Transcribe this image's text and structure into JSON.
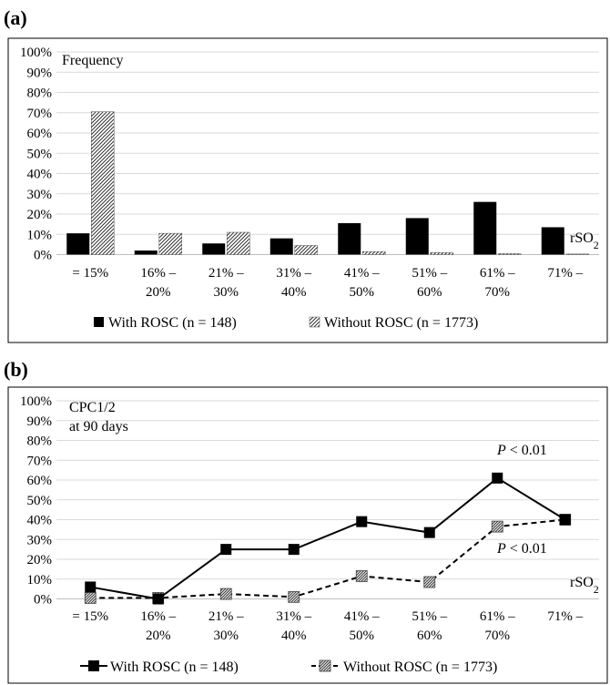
{
  "chart_data": [
    {
      "panel_label": "(a)",
      "type": "bar",
      "categories": [
        [
          "= 15%",
          ""
        ],
        [
          "16% –",
          "20%"
        ],
        [
          "21% –",
          "30%"
        ],
        [
          "31% –",
          "40%"
        ],
        [
          "41% –",
          "50%"
        ],
        [
          "51% –",
          "60%"
        ],
        [
          "61% –",
          "70%"
        ],
        [
          "71% –",
          ""
        ]
      ],
      "series": [
        {
          "name": "With ROSC (n = 148)",
          "values": [
            10.5,
            2,
            5.5,
            8,
            15.5,
            18,
            26,
            13.5
          ],
          "fill": "solid",
          "color": "#000000"
        },
        {
          "name": "Without ROSC (n = 1773)",
          "values": [
            70.5,
            10.5,
            11,
            4.5,
            1.5,
            1,
            0.5,
            0.3
          ],
          "fill": "hatched",
          "color": "#555555"
        }
      ],
      "ylabel": "Frequency",
      "xlabel": "rSO",
      "xlabel_sub": "2",
      "ylim": [
        0,
        100
      ],
      "ytick_step": 10,
      "y_tick_suffix": "%",
      "grid": true,
      "legend_position": "bottom"
    },
    {
      "panel_label": "(b)",
      "type": "line",
      "categories": [
        [
          "= 15%",
          ""
        ],
        [
          "16% –",
          "20%"
        ],
        [
          "21% –",
          "30%"
        ],
        [
          "31% –",
          "40%"
        ],
        [
          "41% –",
          "50%"
        ],
        [
          "51% –",
          "60%"
        ],
        [
          "61% –",
          "70%"
        ],
        [
          "71% –",
          ""
        ]
      ],
      "series": [
        {
          "name": "With ROSC (n = 148)",
          "values": [
            6,
            0,
            25,
            25,
            39,
            33.5,
            61,
            40
          ],
          "line_style": "solid",
          "marker": "filled-square",
          "color": "#000000"
        },
        {
          "name": "Without ROSC (n = 1773)",
          "values": [
            0.5,
            0.5,
            2.5,
            1,
            11.5,
            8.5,
            36.5,
            40
          ],
          "line_style": "dashed",
          "marker": "hatched-square",
          "color": "#555555"
        }
      ],
      "ylabel_lines": [
        "CPC1/2",
        "at 90 days"
      ],
      "xlabel": "rSO",
      "xlabel_sub": "2",
      "annotations": [
        {
          "italic": "P",
          "text": " < 0.01"
        },
        {
          "italic": "P",
          "text": " < 0.01"
        }
      ],
      "ylim": [
        0,
        100
      ],
      "ytick_step": 10,
      "y_tick_suffix": "%",
      "grid": true,
      "legend_position": "bottom"
    }
  ]
}
